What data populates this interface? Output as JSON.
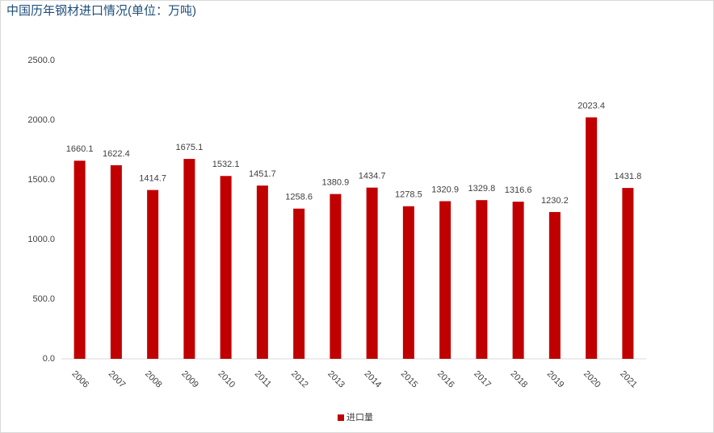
{
  "chart_data": {
    "type": "bar",
    "title": "中国历年钢材进口情况(单位：万吨)",
    "categories": [
      "2006",
      "2007",
      "2008",
      "2009",
      "2010",
      "2011",
      "2012",
      "2013",
      "2014",
      "2015",
      "2016",
      "2017",
      "2018",
      "2019",
      "2020",
      "2021"
    ],
    "series": [
      {
        "name": "进口量",
        "color": "#c00000",
        "values": [
          1660.1,
          1622.4,
          1414.7,
          1675.1,
          1532.1,
          1451.7,
          1258.6,
          1380.9,
          1434.7,
          1278.5,
          1320.9,
          1329.8,
          1316.6,
          1230.2,
          2023.4,
          1431.8
        ]
      }
    ],
    "ylim": [
      0,
      2500
    ],
    "yticks": [
      {
        "value": 0,
        "label": "0.0"
      },
      {
        "value": 500,
        "label": "500.0"
      },
      {
        "value": 1000,
        "label": "1000.0"
      },
      {
        "value": 1500,
        "label": "1500.0"
      },
      {
        "value": 2000,
        "label": "2000.0"
      },
      {
        "value": 2500,
        "label": "2500.0"
      }
    ],
    "grid": false,
    "legend": "bottom"
  }
}
